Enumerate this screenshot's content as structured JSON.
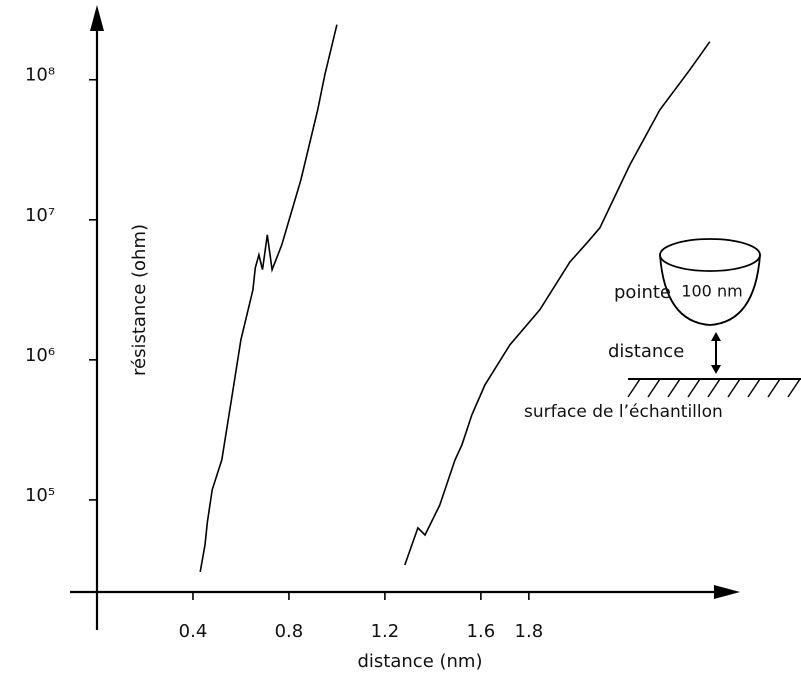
{
  "chart_data": {
    "type": "line",
    "xlabel": "distance (nm)",
    "ylabel": "résistance (ohm)",
    "log_y": true,
    "xlim": [
      -0.1125,
      2.68
    ],
    "ylim": [
      22000,
      320000000
    ],
    "xticks": [
      0.4,
      0.8,
      1.2,
      1.6,
      1.8
    ],
    "yticks": [
      {
        "value": 100000,
        "label": "10⁵"
      },
      {
        "value": 1000000,
        "label": "10⁶"
      },
      {
        "value": 10000000,
        "label": "10⁷"
      },
      {
        "value": 100000000,
        "label": "10⁸"
      }
    ],
    "series": [
      {
        "color": "#000000",
        "x": [
          0.43,
          0.45,
          0.46,
          0.48,
          0.52,
          0.56,
          0.6,
          0.65,
          0.66,
          0.675,
          0.69,
          0.71,
          0.73,
          0.77,
          0.85,
          0.92,
          0.95,
          1.0
        ],
        "values": [
          30600,
          47700,
          69600,
          118000,
          193000,
          518000,
          1390000,
          3160000,
          4540000,
          5620000,
          4400000,
          7800000,
          4400000,
          6600000,
          19300000,
          61000000,
          109000000,
          247000000
        ]
      },
      {
        "color": "#000000",
        "x": [
          1.283,
          1.3125,
          1.3375,
          1.367,
          1.429,
          1.492,
          1.521,
          1.5625,
          1.617,
          1.721,
          1.846,
          1.971,
          2.046,
          2.096,
          2.221,
          2.346,
          2.471,
          2.554
        ],
        "values": [
          34300,
          47700,
          63100,
          56200,
          92000,
          193000,
          247000,
          405000,
          663000,
          1280000,
          2280000,
          5000000,
          6960000,
          8770000,
          24700000,
          61000000,
          118000000,
          187000000
        ]
      }
    ],
    "annotations": [
      "pointe",
      "100 nm",
      "distance",
      "surface de l’échantillon"
    ]
  }
}
